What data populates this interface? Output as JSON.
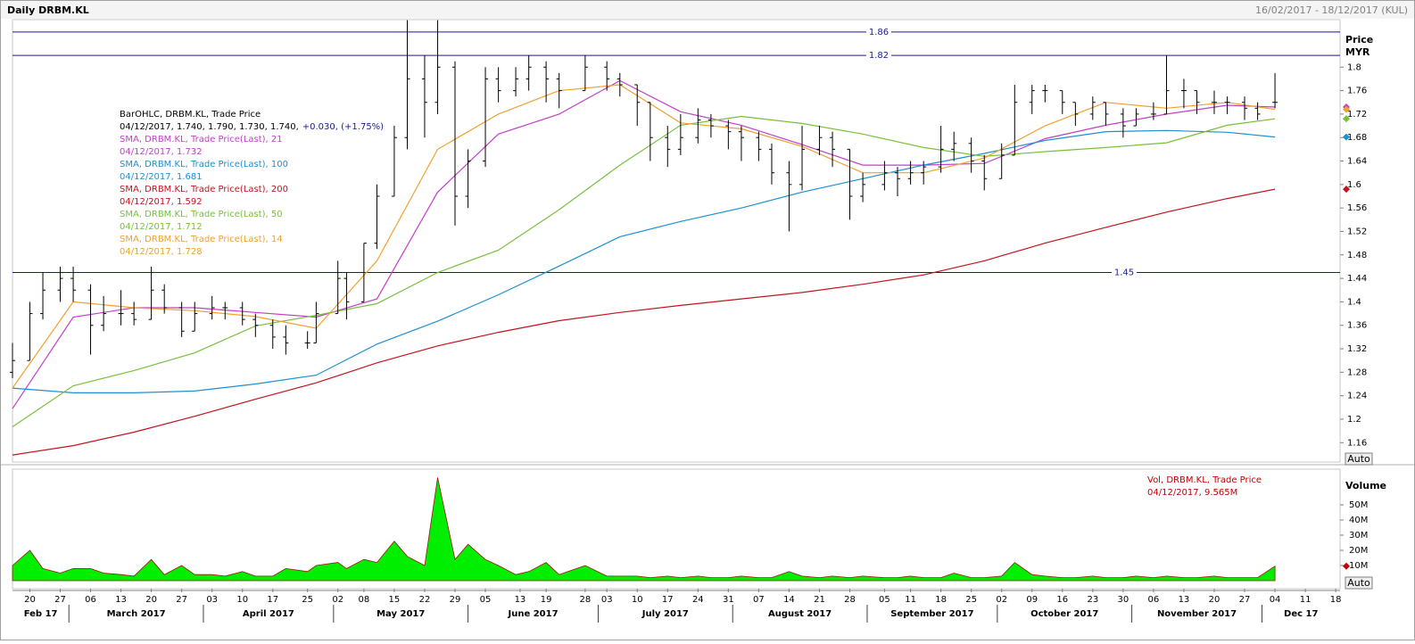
{
  "chart_data": {
    "type": "ohlc",
    "title": "Daily DRBM.KL",
    "date_range": "16/02/2017 - 18/12/2017 (KUL)",
    "y_axis_title": "Price",
    "y_axis_unit": "MYR",
    "auto_label": "Auto",
    "xlim": [
      "2017-02-16",
      "2017-12-19"
    ],
    "ylim": [
      1.127,
      1.881
    ],
    "yticks": [
      1.16,
      1.2,
      1.24,
      1.28,
      1.32,
      1.36,
      1.4,
      1.44,
      1.48,
      1.52,
      1.56,
      1.6,
      1.64,
      1.68,
      1.72,
      1.76,
      1.8
    ],
    "hlines": [
      1.86,
      1.82,
      1.45
    ],
    "hline_color": "#1a1a8c",
    "bar_color": "#000000",
    "legend": {
      "name": "BarOHLC, DRBM.KL, Trade Price",
      "reading": "04/12/2017, 1.740, 1.790, 1.730, 1.740,",
      "change": "+0.030, (+1.75%)"
    },
    "ohlc": {
      "x": [
        "2017-02-16",
        "2017-02-20",
        "2017-02-23",
        "2017-02-27",
        "2017-03-02",
        "2017-03-06",
        "2017-03-09",
        "2017-03-13",
        "2017-03-16",
        "2017-03-20",
        "2017-03-23",
        "2017-03-27",
        "2017-03-30",
        "2017-04-03",
        "2017-04-06",
        "2017-04-10",
        "2017-04-13",
        "2017-04-17",
        "2017-04-20",
        "2017-04-25",
        "2017-04-27",
        "2017-05-02",
        "2017-05-04",
        "2017-05-08",
        "2017-05-11",
        "2017-05-15",
        "2017-05-18",
        "2017-05-22",
        "2017-05-25",
        "2017-05-29",
        "2017-06-01",
        "2017-06-05",
        "2017-06-08",
        "2017-06-12",
        "2017-06-15",
        "2017-06-19",
        "2017-06-22",
        "2017-06-28",
        "2017-07-03",
        "2017-07-06",
        "2017-07-10",
        "2017-07-13",
        "2017-07-17",
        "2017-07-20",
        "2017-07-24",
        "2017-07-27",
        "2017-07-31",
        "2017-08-03",
        "2017-08-07",
        "2017-08-10",
        "2017-08-14",
        "2017-08-17",
        "2017-08-21",
        "2017-08-24",
        "2017-08-28",
        "2017-08-31",
        "2017-09-05",
        "2017-09-08",
        "2017-09-11",
        "2017-09-14",
        "2017-09-18",
        "2017-09-21",
        "2017-09-25",
        "2017-09-28",
        "2017-10-02",
        "2017-10-05",
        "2017-10-09",
        "2017-10-12",
        "2017-10-16",
        "2017-10-19",
        "2017-10-23",
        "2017-10-26",
        "2017-10-30",
        "2017-11-02",
        "2017-11-06",
        "2017-11-09",
        "2017-11-13",
        "2017-11-16",
        "2017-11-20",
        "2017-11-23",
        "2017-11-27",
        "2017-11-30",
        "2017-12-04"
      ],
      "open": [
        1.28,
        1.3,
        1.38,
        1.42,
        1.44,
        1.42,
        1.36,
        1.38,
        1.38,
        1.37,
        1.42,
        1.39,
        1.35,
        1.38,
        1.39,
        1.39,
        1.37,
        1.36,
        1.34,
        1.33,
        1.33,
        1.38,
        1.44,
        1.4,
        1.5,
        1.58,
        1.68,
        1.78,
        1.74,
        1.8,
        1.58,
        1.64,
        1.78,
        1.76,
        1.78,
        1.8,
        1.78,
        1.76,
        1.8,
        1.78,
        1.77,
        1.74,
        1.68,
        1.66,
        1.68,
        1.71,
        1.7,
        1.69,
        1.68,
        1.66,
        1.62,
        1.6,
        1.66,
        1.68,
        1.66,
        1.58,
        1.6,
        1.62,
        1.61,
        1.62,
        1.63,
        1.66,
        1.67,
        1.64,
        1.61,
        1.65,
        1.74,
        1.76,
        1.76,
        1.74,
        1.72,
        1.74,
        1.72,
        1.7,
        1.72,
        1.72,
        1.76,
        1.76,
        1.74,
        1.74,
        1.74,
        1.73,
        1.74
      ],
      "high": [
        1.33,
        1.4,
        1.45,
        1.46,
        1.46,
        1.43,
        1.41,
        1.42,
        1.4,
        1.46,
        1.43,
        1.4,
        1.4,
        1.41,
        1.4,
        1.4,
        1.38,
        1.37,
        1.36,
        1.35,
        1.4,
        1.47,
        1.45,
        1.5,
        1.6,
        1.7,
        1.88,
        1.82,
        1.88,
        1.81,
        1.66,
        1.8,
        1.8,
        1.8,
        1.82,
        1.81,
        1.79,
        1.82,
        1.81,
        1.79,
        1.77,
        1.74,
        1.7,
        1.72,
        1.73,
        1.72,
        1.71,
        1.7,
        1.69,
        1.67,
        1.64,
        1.7,
        1.7,
        1.69,
        1.66,
        1.62,
        1.64,
        1.63,
        1.64,
        1.64,
        1.7,
        1.69,
        1.68,
        1.65,
        1.67,
        1.77,
        1.77,
        1.77,
        1.76,
        1.74,
        1.75,
        1.74,
        1.73,
        1.73,
        1.74,
        1.82,
        1.78,
        1.76,
        1.76,
        1.75,
        1.75,
        1.74,
        1.79
      ],
      "low": [
        1.27,
        1.3,
        1.37,
        1.4,
        1.4,
        1.31,
        1.35,
        1.36,
        1.36,
        1.37,
        1.38,
        1.34,
        1.35,
        1.37,
        1.37,
        1.36,
        1.34,
        1.32,
        1.31,
        1.32,
        1.33,
        1.38,
        1.37,
        1.4,
        1.49,
        1.58,
        1.66,
        1.68,
        1.72,
        1.53,
        1.56,
        1.63,
        1.74,
        1.75,
        1.76,
        1.74,
        1.73,
        1.76,
        1.76,
        1.75,
        1.7,
        1.64,
        1.63,
        1.65,
        1.67,
        1.68,
        1.66,
        1.64,
        1.64,
        1.6,
        1.52,
        1.59,
        1.65,
        1.63,
        1.54,
        1.57,
        1.59,
        1.58,
        1.6,
        1.6,
        1.62,
        1.64,
        1.62,
        1.59,
        1.61,
        1.65,
        1.72,
        1.74,
        1.72,
        1.7,
        1.71,
        1.7,
        1.68,
        1.7,
        1.71,
        1.72,
        1.73,
        1.72,
        1.72,
        1.72,
        1.71,
        1.71,
        1.73
      ],
      "close": [
        1.3,
        1.38,
        1.42,
        1.44,
        1.42,
        1.36,
        1.38,
        1.38,
        1.37,
        1.42,
        1.39,
        1.35,
        1.38,
        1.39,
        1.39,
        1.37,
        1.36,
        1.34,
        1.33,
        1.33,
        1.38,
        1.44,
        1.4,
        1.5,
        1.58,
        1.68,
        1.78,
        1.74,
        1.8,
        1.58,
        1.64,
        1.78,
        1.76,
        1.78,
        1.8,
        1.78,
        1.76,
        1.8,
        1.78,
        1.77,
        1.74,
        1.68,
        1.66,
        1.68,
        1.71,
        1.7,
        1.69,
        1.68,
        1.66,
        1.62,
        1.6,
        1.66,
        1.68,
        1.66,
        1.58,
        1.6,
        1.62,
        1.61,
        1.62,
        1.63,
        1.66,
        1.67,
        1.64,
        1.61,
        1.65,
        1.74,
        1.76,
        1.76,
        1.74,
        1.72,
        1.74,
        1.72,
        1.7,
        1.72,
        1.72,
        1.76,
        1.76,
        1.74,
        1.74,
        1.74,
        1.73,
        1.72,
        1.74
      ]
    },
    "sma_x": [
      "2017-02-16",
      "2017-03-02",
      "2017-03-16",
      "2017-03-30",
      "2017-04-13",
      "2017-04-27",
      "2017-05-11",
      "2017-05-25",
      "2017-06-08",
      "2017-06-22",
      "2017-07-06",
      "2017-07-20",
      "2017-08-03",
      "2017-08-17",
      "2017-08-31",
      "2017-09-14",
      "2017-09-28",
      "2017-10-12",
      "2017-10-26",
      "2017-11-09",
      "2017-11-23",
      "2017-12-04"
    ],
    "series": [
      {
        "name": "SMA, DRBM.KL, Trade Price(Last),  21",
        "reading": "04/12/2017, 1.732",
        "color": "#c040c8",
        "values": [
          1.218,
          1.374,
          1.39,
          1.39,
          1.382,
          1.374,
          1.405,
          1.587,
          1.686,
          1.72,
          1.777,
          1.724,
          1.701,
          1.668,
          1.633,
          1.633,
          1.636,
          1.678,
          1.701,
          1.72,
          1.735,
          1.732
        ]
      },
      {
        "name": "SMA, DRBM.KL, Trade Price(Last),  100",
        "reading": "04/12/2017, 1.681",
        "color": "#1e90d0",
        "values": [
          1.253,
          1.245,
          1.245,
          1.248,
          1.26,
          1.275,
          1.328,
          1.367,
          1.412,
          1.461,
          1.511,
          1.537,
          1.56,
          1.587,
          1.61,
          1.633,
          1.653,
          1.675,
          1.69,
          1.692,
          1.689,
          1.681
        ]
      },
      {
        "name": "SMA, DRBM.KL, Trade Price(Last),  200",
        "reading": "04/12/2017, 1.592",
        "color": "#c0141e",
        "values": [
          1.139,
          1.155,
          1.178,
          1.205,
          1.234,
          1.262,
          1.296,
          1.325,
          1.348,
          1.368,
          1.382,
          1.394,
          1.405,
          1.416,
          1.43,
          1.446,
          1.47,
          1.5,
          1.527,
          1.553,
          1.576,
          1.592
        ]
      },
      {
        "name": "SMA, DRBM.KL, Trade Price(Last),  50",
        "reading": "04/12/2017, 1.712",
        "color": "#78c03c",
        "values": [
          1.187,
          1.257,
          1.283,
          1.313,
          1.359,
          1.377,
          1.397,
          1.45,
          1.488,
          1.557,
          1.633,
          1.701,
          1.716,
          1.704,
          1.686,
          1.663,
          1.648,
          1.656,
          1.663,
          1.671,
          1.701,
          1.712
        ]
      },
      {
        "name": "SMA, DRBM.KL, Trade Price(Last),  14",
        "reading": "04/12/2017, 1.728",
        "color": "#f0a030",
        "values": [
          1.253,
          1.4,
          1.39,
          1.385,
          1.375,
          1.355,
          1.47,
          1.66,
          1.72,
          1.76,
          1.77,
          1.705,
          1.695,
          1.665,
          1.62,
          1.62,
          1.645,
          1.7,
          1.74,
          1.73,
          1.74,
          1.728
        ]
      }
    ],
    "volume": {
      "axis_title": "Volume",
      "name": "Vol, DRBM.KL, Trade Price",
      "reading": "04/12/2017, 9.565M",
      "fill": "#00ee00",
      "stroke": "#a01010",
      "ylim": [
        -5.3,
        73.5
      ],
      "yticks": [
        {
          "value": 10,
          "label": "10M"
        },
        {
          "value": 20,
          "label": "20M"
        },
        {
          "value": 30,
          "label": "30M"
        },
        {
          "value": 40,
          "label": "40M"
        },
        {
          "value": 50,
          "label": "50M"
        }
      ],
      "values": [
        10,
        20,
        8,
        5,
        8,
        8,
        5,
        4,
        3,
        14,
        4,
        10,
        4,
        4,
        3,
        6,
        3,
        3,
        8,
        6,
        10,
        12,
        8,
        14,
        12,
        26,
        16,
        10,
        68,
        14,
        24,
        14,
        10,
        4,
        6,
        12,
        4,
        10,
        3,
        3,
        3,
        2,
        3,
        2,
        3,
        2,
        2,
        3,
        2,
        2,
        6,
        3,
        2,
        3,
        2,
        3,
        2,
        2,
        3,
        2,
        2,
        5,
        2,
        2,
        3,
        12,
        4,
        3,
        2,
        2,
        3,
        2,
        2,
        3,
        2,
        3,
        2,
        2,
        3,
        2,
        2,
        2,
        9.565
      ]
    },
    "xticks": [
      {
        "value": "2017-02-20",
        "label": "20"
      },
      {
        "value": "2017-02-27",
        "label": "27"
      },
      {
        "value": "2017-03-06",
        "label": "06"
      },
      {
        "value": "2017-03-13",
        "label": "13"
      },
      {
        "value": "2017-03-20",
        "label": "20"
      },
      {
        "value": "2017-03-27",
        "label": "27"
      },
      {
        "value": "2017-04-03",
        "label": "03"
      },
      {
        "value": "2017-04-10",
        "label": "10"
      },
      {
        "value": "2017-04-17",
        "label": "17"
      },
      {
        "value": "2017-04-25",
        "label": "25"
      },
      {
        "value": "2017-05-02",
        "label": "02"
      },
      {
        "value": "2017-05-08",
        "label": "08"
      },
      {
        "value": "2017-05-15",
        "label": "15"
      },
      {
        "value": "2017-05-22",
        "label": "22"
      },
      {
        "value": "2017-05-29",
        "label": "29"
      },
      {
        "value": "2017-06-05",
        "label": "05"
      },
      {
        "value": "2017-06-13",
        "label": "13"
      },
      {
        "value": "2017-06-19",
        "label": "19"
      },
      {
        "value": "2017-06-28",
        "label": "28"
      },
      {
        "value": "2017-07-03",
        "label": "03"
      },
      {
        "value": "2017-07-10",
        "label": "10"
      },
      {
        "value": "2017-07-17",
        "label": "17"
      },
      {
        "value": "2017-07-24",
        "label": "24"
      },
      {
        "value": "2017-07-31",
        "label": "31"
      },
      {
        "value": "2017-08-07",
        "label": "07"
      },
      {
        "value": "2017-08-14",
        "label": "14"
      },
      {
        "value": "2017-08-21",
        "label": "21"
      },
      {
        "value": "2017-08-28",
        "label": "28"
      },
      {
        "value": "2017-09-05",
        "label": "05"
      },
      {
        "value": "2017-09-11",
        "label": "11"
      },
      {
        "value": "2017-09-18",
        "label": "18"
      },
      {
        "value": "2017-09-25",
        "label": "25"
      },
      {
        "value": "2017-10-02",
        "label": "02"
      },
      {
        "value": "2017-10-09",
        "label": "09"
      },
      {
        "value": "2017-10-16",
        "label": "16"
      },
      {
        "value": "2017-10-23",
        "label": "23"
      },
      {
        "value": "2017-10-30",
        "label": "30"
      },
      {
        "value": "2017-11-06",
        "label": "06"
      },
      {
        "value": "2017-11-13",
        "label": "13"
      },
      {
        "value": "2017-11-20",
        "label": "20"
      },
      {
        "value": "2017-11-27",
        "label": "27"
      },
      {
        "value": "2017-12-04",
        "label": "04"
      },
      {
        "value": "2017-12-11",
        "label": "11"
      },
      {
        "value": "2017-12-18",
        "label": "18"
      }
    ],
    "months": [
      {
        "value": "2017-02-01",
        "label": "Feb 17"
      },
      {
        "value": "2017-03-01",
        "label": "March 2017"
      },
      {
        "value": "2017-04-01",
        "label": "April 2017"
      },
      {
        "value": "2017-05-01",
        "label": "May 2017"
      },
      {
        "value": "2017-06-01",
        "label": "June 2017"
      },
      {
        "value": "2017-07-01",
        "label": "July 2017"
      },
      {
        "value": "2017-08-01",
        "label": "August 2017"
      },
      {
        "value": "2017-09-01",
        "label": "September 2017"
      },
      {
        "value": "2017-10-01",
        "label": "October 2017"
      },
      {
        "value": "2017-11-01",
        "label": "November 2017"
      },
      {
        "value": "2017-12-01",
        "label": "Dec 17"
      }
    ]
  }
}
